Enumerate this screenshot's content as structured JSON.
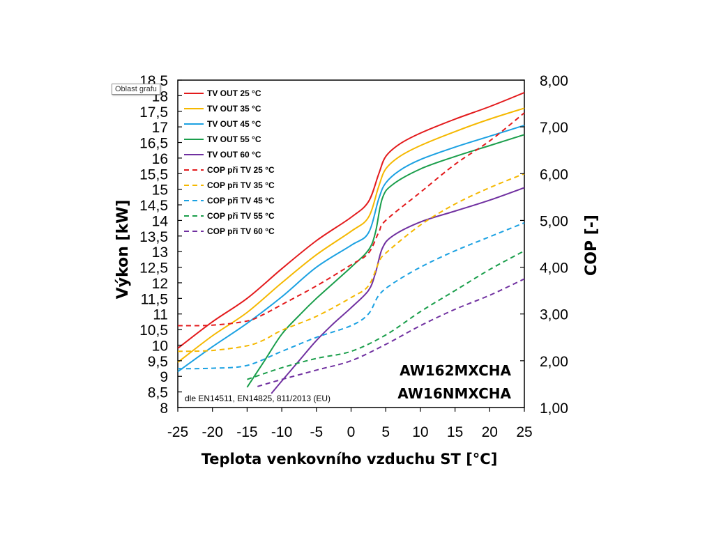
{
  "tooltip": "Oblast grafu",
  "chart_data": {
    "type": "line",
    "xlabel": "Teplota venkovního vzduchu ST [°C]",
    "ylabel": "Výkon [kW]",
    "y2label": "COP [-]",
    "xlim": [
      -25,
      25
    ],
    "ylim": [
      8,
      18.5
    ],
    "y2lim": [
      1.0,
      8.0
    ],
    "x_ticks": [
      "-25",
      "-20",
      "-15",
      "-10",
      "-5",
      "0",
      "5",
      "10",
      "15",
      "20",
      "25"
    ],
    "y_ticks": [
      "8",
      "8,5",
      "9",
      "9,5",
      "10",
      "10,5",
      "11",
      "11,5",
      "12",
      "12,5",
      "13",
      "13,5",
      "14",
      "14,5",
      "15",
      "15,5",
      "16",
      "16,5",
      "17",
      "17,5",
      "18",
      "18,5"
    ],
    "y2_ticks": [
      "1,00",
      "2,00",
      "3,00",
      "4,00",
      "5,00",
      "6,00",
      "7,00",
      "8,00"
    ],
    "grid": false,
    "legend_position": "top-left",
    "model_labels": [
      "AW162MXCHA",
      "AW16NMXCHA"
    ],
    "note": "dle EN14511, EN14825, 811/2013 (EU)",
    "series": [
      {
        "name": "TV OUT 25 °C",
        "axis": "left",
        "style": "solid",
        "color": "#e31a1c",
        "points": [
          [
            -25,
            9.9
          ],
          [
            -20,
            10.75
          ],
          [
            -15,
            11.5
          ],
          [
            -10,
            12.45
          ],
          [
            -5,
            13.35
          ],
          [
            0,
            14.1
          ],
          [
            2.5,
            14.6
          ],
          [
            4,
            15.5
          ],
          [
            5,
            16.05
          ],
          [
            7,
            16.45
          ],
          [
            10,
            16.8
          ],
          [
            15,
            17.25
          ],
          [
            20,
            17.65
          ],
          [
            25,
            18.1
          ]
        ]
      },
      {
        "name": "TV OUT 35 °C",
        "axis": "left",
        "style": "solid",
        "color": "#f5b800",
        "points": [
          [
            -25,
            9.45
          ],
          [
            -20,
            10.3
          ],
          [
            -15,
            11.05
          ],
          [
            -10,
            12.0
          ],
          [
            -5,
            12.9
          ],
          [
            0,
            13.65
          ],
          [
            2.5,
            14.1
          ],
          [
            4,
            15.1
          ],
          [
            5,
            15.65
          ],
          [
            7,
            16.05
          ],
          [
            10,
            16.4
          ],
          [
            15,
            16.85
          ],
          [
            20,
            17.25
          ],
          [
            25,
            17.6
          ]
        ]
      },
      {
        "name": "TV OUT 45 °C",
        "axis": "left",
        "style": "solid",
        "color": "#1ba1e2",
        "points": [
          [
            -25,
            9.15
          ],
          [
            -20,
            9.95
          ],
          [
            -15,
            10.7
          ],
          [
            -10,
            11.55
          ],
          [
            -5,
            12.5
          ],
          [
            0,
            13.2
          ],
          [
            2.5,
            13.6
          ],
          [
            4,
            14.7
          ],
          [
            5,
            15.2
          ],
          [
            7,
            15.6
          ],
          [
            10,
            15.95
          ],
          [
            15,
            16.35
          ],
          [
            20,
            16.7
          ],
          [
            25,
            17.05
          ]
        ]
      },
      {
        "name": "TV OUT 55 °C",
        "axis": "left",
        "style": "solid",
        "color": "#1a9e4b",
        "points": [
          [
            -15,
            8.65
          ],
          [
            -12.5,
            9.5
          ],
          [
            -10,
            10.35
          ],
          [
            -7.5,
            10.95
          ],
          [
            -5,
            11.5
          ],
          [
            0,
            12.5
          ],
          [
            2.5,
            13.05
          ],
          [
            3.5,
            13.6
          ],
          [
            4.5,
            14.7
          ],
          [
            6,
            15.15
          ],
          [
            10,
            15.65
          ],
          [
            15,
            16.05
          ],
          [
            20,
            16.4
          ],
          [
            25,
            16.75
          ]
        ]
      },
      {
        "name": "TV OUT 60 °C",
        "axis": "left",
        "style": "solid",
        "color": "#7030a0",
        "points": [
          [
            -11.5,
            8.45
          ],
          [
            -10,
            8.85
          ],
          [
            -7.5,
            9.5
          ],
          [
            -5,
            10.15
          ],
          [
            -2.5,
            10.7
          ],
          [
            0,
            11.2
          ],
          [
            2.5,
            11.75
          ],
          [
            3.5,
            12.3
          ],
          [
            4.5,
            13.1
          ],
          [
            6,
            13.5
          ],
          [
            10,
            13.95
          ],
          [
            15,
            14.3
          ],
          [
            20,
            14.65
          ],
          [
            25,
            15.05
          ]
        ]
      },
      {
        "name": "COP při TV 25 °C",
        "axis": "right",
        "style": "dashed",
        "color": "#e31a1c",
        "points": [
          [
            -25,
            2.75
          ],
          [
            -20,
            2.76
          ],
          [
            -15,
            2.85
          ],
          [
            -12.5,
            3.0
          ],
          [
            -10,
            3.2
          ],
          [
            -5,
            3.6
          ],
          [
            0,
            4.05
          ],
          [
            2.5,
            4.3
          ],
          [
            4,
            4.75
          ],
          [
            5,
            5.0
          ],
          [
            10,
            5.6
          ],
          [
            15,
            6.2
          ],
          [
            20,
            6.7
          ],
          [
            25,
            7.3
          ]
        ]
      },
      {
        "name": "COP při TV 35 °C",
        "axis": "right",
        "style": "dashed",
        "color": "#f5b800",
        "points": [
          [
            -25,
            2.2
          ],
          [
            -20,
            2.22
          ],
          [
            -15,
            2.32
          ],
          [
            -12.5,
            2.45
          ],
          [
            -10,
            2.65
          ],
          [
            -5,
            2.95
          ],
          [
            0,
            3.35
          ],
          [
            2.5,
            3.6
          ],
          [
            4,
            4.1
          ],
          [
            5,
            4.3
          ],
          [
            10,
            4.9
          ],
          [
            15,
            5.35
          ],
          [
            20,
            5.7
          ],
          [
            25,
            6.0
          ]
        ]
      },
      {
        "name": "COP při TV 45 °C",
        "axis": "right",
        "style": "dashed",
        "color": "#1ba1e2",
        "points": [
          [
            -25,
            1.83
          ],
          [
            -20,
            1.84
          ],
          [
            -15,
            1.9
          ],
          [
            -10,
            2.2
          ],
          [
            -5,
            2.5
          ],
          [
            0,
            2.75
          ],
          [
            2.5,
            3.0
          ],
          [
            4,
            3.4
          ],
          [
            6,
            3.65
          ],
          [
            10,
            4.0
          ],
          [
            15,
            4.35
          ],
          [
            20,
            4.65
          ],
          [
            25,
            4.95
          ]
        ]
      },
      {
        "name": "COP při TV 55 °C",
        "axis": "right",
        "style": "dashed",
        "color": "#1a9e4b",
        "points": [
          [
            -15,
            1.6
          ],
          [
            -10,
            1.85
          ],
          [
            -5,
            2.05
          ],
          [
            0,
            2.2
          ],
          [
            5,
            2.55
          ],
          [
            10,
            3.05
          ],
          [
            15,
            3.5
          ],
          [
            20,
            3.95
          ],
          [
            25,
            4.35
          ]
        ]
      },
      {
        "name": "COP při TV 60 °C",
        "axis": "right",
        "style": "dashed",
        "color": "#7030a0",
        "points": [
          [
            -13.5,
            1.45
          ],
          [
            -10,
            1.6
          ],
          [
            -5,
            1.8
          ],
          [
            0,
            2.0
          ],
          [
            5,
            2.35
          ],
          [
            10,
            2.75
          ],
          [
            15,
            3.1
          ],
          [
            20,
            3.4
          ],
          [
            25,
            3.75
          ]
        ]
      }
    ]
  }
}
